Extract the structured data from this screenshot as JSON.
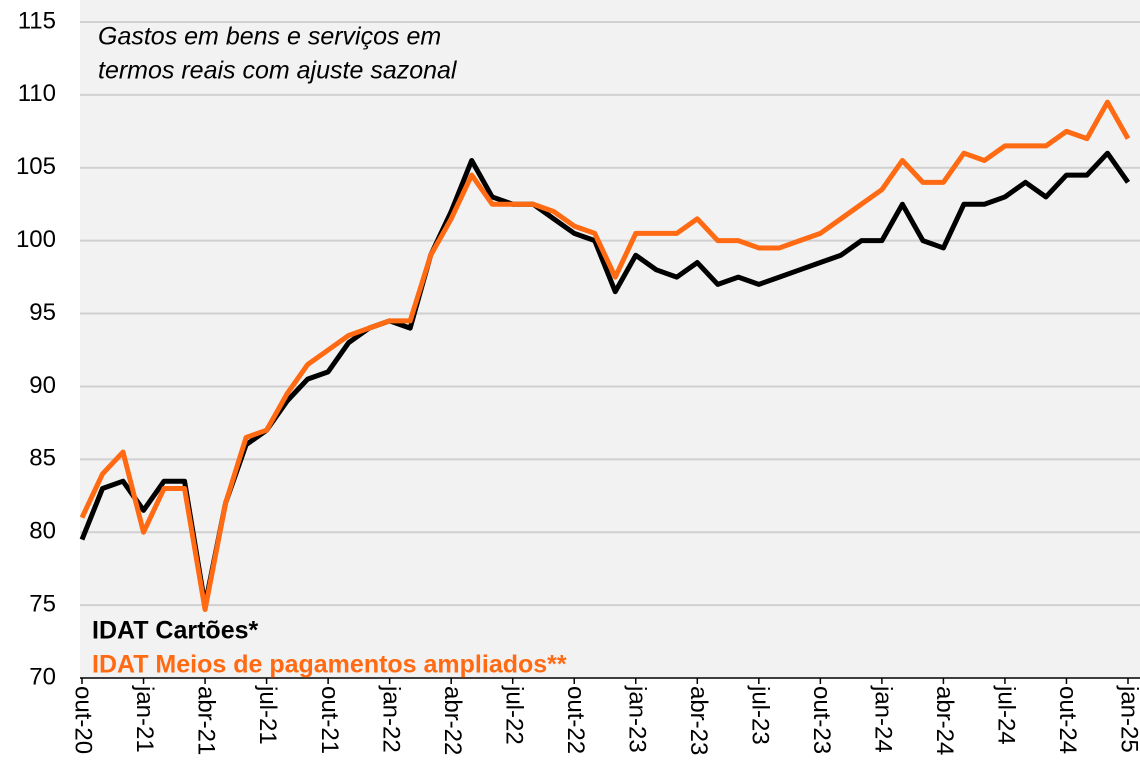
{
  "chart_data": {
    "type": "line",
    "title": [
      "Gastos em bens e serviços em",
      "termos reais com ajuste sazonal"
    ],
    "categories": [
      "out-20",
      null,
      null,
      "jan-21",
      null,
      null,
      "abr-21",
      null,
      null,
      "jul-21",
      null,
      null,
      "out-21",
      null,
      null,
      "jan-22",
      null,
      null,
      "abr-22",
      null,
      null,
      "jul-22",
      null,
      null,
      "out-22",
      null,
      null,
      "jan-23",
      null,
      null,
      "abr-23",
      null,
      null,
      "jul-23",
      null,
      null,
      "out-23",
      null,
      null,
      "jan-24",
      null,
      null,
      "abr-24",
      null,
      null,
      "jul-24",
      null,
      null,
      "out-24",
      null,
      null,
      "jan-25"
    ],
    "series": [
      {
        "name": "IDAT Cartões*",
        "color": "#000000",
        "values": [
          79.5,
          83,
          83.5,
          81.5,
          83.5,
          83.5,
          75,
          82,
          86,
          87,
          89,
          90.5,
          91,
          93,
          94,
          94.5,
          94,
          99,
          102,
          105.5,
          103,
          102.5,
          102.5,
          101.5,
          100.5,
          100,
          96.5,
          99,
          98,
          97.5,
          98.5,
          97,
          97.5,
          97,
          97.5,
          98,
          98.5,
          99,
          100,
          100,
          102.5,
          100,
          99.5,
          102.5,
          102.5,
          103,
          104,
          103,
          104.5,
          104.5,
          106,
          104
        ]
      },
      {
        "name": "IDAT Meios de pagamentos ampliados**",
        "color": "#ff6a13",
        "values": [
          81,
          84,
          85.5,
          80,
          83,
          83,
          74.7,
          82,
          86.5,
          87,
          89.5,
          91.5,
          92.5,
          93.5,
          94,
          94.5,
          94.5,
          99,
          101.5,
          104.5,
          102.5,
          102.5,
          102.5,
          102,
          101,
          100.5,
          97.5,
          100.5,
          100.5,
          100.5,
          101.5,
          100,
          100,
          99.5,
          99.5,
          100,
          100.5,
          101.5,
          102.5,
          103.5,
          105.5,
          104,
          104,
          106,
          105.5,
          106.5,
          106.5,
          106.5,
          107.5,
          107,
          109.5,
          107
        ]
      }
    ],
    "ylim": [
      70,
      115
    ],
    "yticks": [
      70,
      75,
      80,
      85,
      90,
      95,
      100,
      105,
      110,
      115
    ],
    "grid": true
  }
}
